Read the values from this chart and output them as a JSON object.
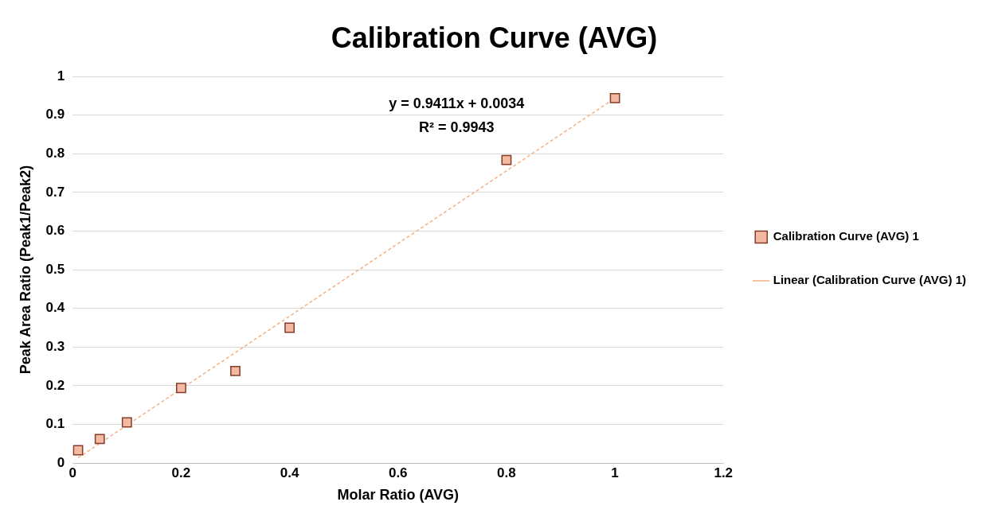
{
  "chart_data": {
    "type": "scatter",
    "title": "Calibration Curve (AVG)",
    "xlabel": "Molar Ratio (AVG)",
    "ylabel": "Peak Area Ratio (Peak1/Peak2)",
    "series": [
      {
        "name": "Calibration Curve (AVG) 1",
        "color": "#f4b9a2",
        "marker": "square",
        "x": [
          0.01,
          0.05,
          0.1,
          0.2,
          0.3,
          0.4,
          0.8,
          1
        ],
        "values": [
          0.033,
          0.062,
          0.105,
          0.194,
          0.238,
          0.35,
          0.784,
          0.944
        ]
      },
      {
        "name": "Linear (Calibration Curve (AVG) 1)",
        "type": "line",
        "color": "#f4b183",
        "line_style": "dashed",
        "marker": "none",
        "x": [
          0.01,
          1
        ],
        "values": [
          0.013,
          0.944
        ]
      }
    ],
    "xlim": [
      0,
      1.2
    ],
    "xticks": [
      0,
      0.2,
      0.4,
      0.6,
      0.8,
      1,
      1.2
    ],
    "ylim": [
      0,
      1
    ],
    "yticks": [
      0,
      0.1,
      0.2,
      0.3,
      0.4,
      0.5,
      0.6,
      0.7,
      0.8,
      0.9,
      1
    ],
    "grid": "y",
    "legend": "right",
    "annotations": [
      "y = 0.9411x + 0.0034",
      "R² = 0.9943"
    ]
  }
}
